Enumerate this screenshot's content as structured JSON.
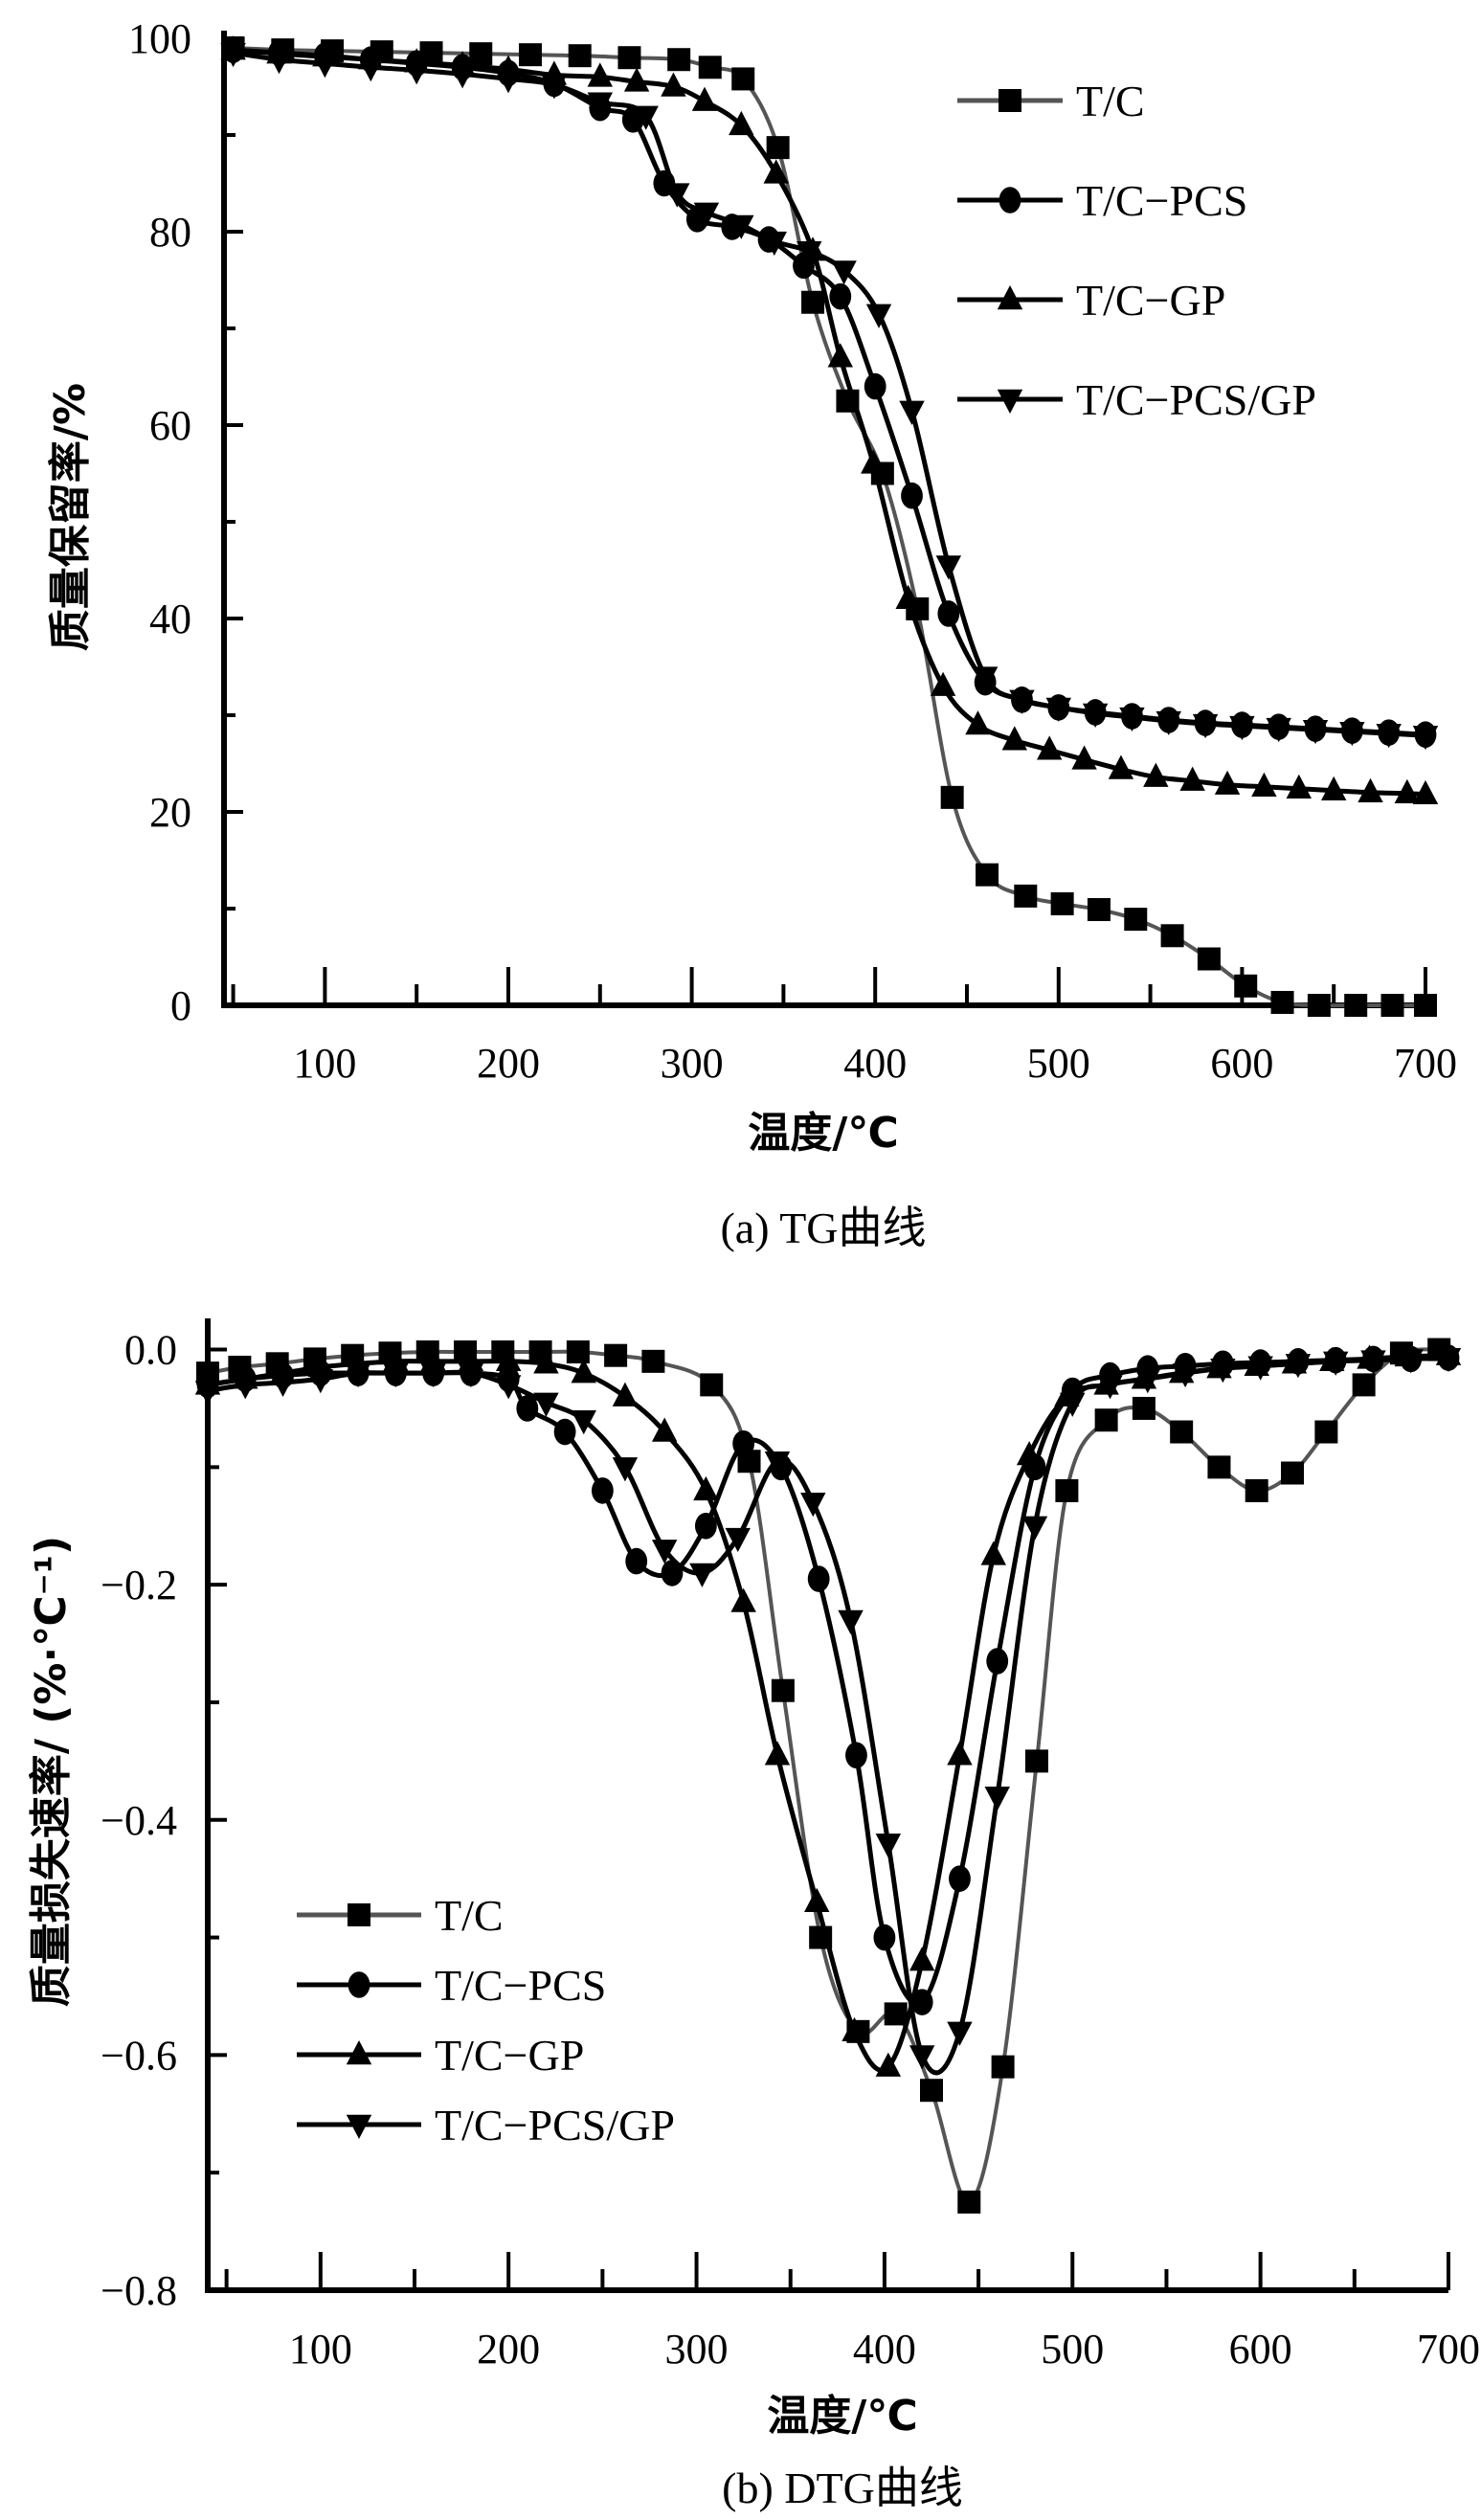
{
  "chart_data": [
    {
      "id": "tg",
      "type": "line",
      "title": "",
      "caption": "(a) TG曲线",
      "xlabel": "温度/℃",
      "ylabel": "质量保留率/%",
      "xlim": [
        45,
        700
      ],
      "ylim": [
        0,
        100
      ],
      "xticks": [
        100,
        200,
        300,
        400,
        500,
        600,
        700
      ],
      "xminor": [
        50,
        150,
        250,
        350,
        450,
        550,
        650
      ],
      "yticks": [
        0,
        20,
        40,
        60,
        80,
        100
      ],
      "yminor": [
        10,
        30,
        50,
        70,
        90
      ],
      "grid": false,
      "legend_position": "top-right",
      "series": [
        {
          "name": "T/C",
          "marker": "square",
          "color": "#555555",
          "x": [
            50,
            77,
            104,
            131,
            158,
            185,
            212,
            239,
            266,
            293,
            310,
            328,
            347,
            366,
            385,
            404,
            423,
            442,
            461,
            482,
            502,
            522,
            542,
            562,
            582,
            602,
            622,
            642,
            662,
            682,
            700
          ],
          "y": [
            99,
            98.8,
            98.7,
            98.6,
            98.5,
            98.4,
            98.3,
            98.2,
            98.0,
            97.8,
            97.0,
            95.8,
            88.7,
            72.7,
            62.5,
            55,
            41,
            21.5,
            13.5,
            11.3,
            10.5,
            9.9,
            8.9,
            7.2,
            4.8,
            2.0,
            0.3,
            0,
            0,
            0,
            0
          ]
        },
        {
          "name": "T/C-PCS",
          "marker": "circle",
          "color": "#000000",
          "x": [
            50,
            75,
            100,
            125,
            150,
            175,
            200,
            225,
            250,
            268,
            285,
            303,
            322,
            342,
            361,
            381,
            400,
            420,
            440,
            460,
            480,
            500,
            520,
            540,
            560,
            580,
            600,
            620,
            640,
            660,
            680,
            700
          ],
          "y": [
            98.8,
            98.5,
            98.2,
            97.8,
            97.4,
            97.0,
            96.4,
            95.3,
            92.8,
            91.6,
            85.0,
            81.3,
            80.5,
            79.2,
            76.5,
            73.3,
            64.0,
            52.7,
            40.5,
            33.4,
            31.6,
            30.8,
            30.3,
            29.9,
            29.5,
            29.2,
            29.0,
            28.8,
            28.6,
            28.4,
            28.2,
            28.0
          ]
        },
        {
          "name": "T/C-GP",
          "marker": "triangle-up",
          "color": "#000000",
          "x": [
            50,
            75,
            100,
            125,
            150,
            175,
            200,
            225,
            250,
            270,
            290,
            307,
            327,
            346,
            366,
            381,
            399,
            418,
            437,
            456,
            476,
            495,
            514,
            534,
            553,
            573,
            592,
            612,
            631,
            650,
            670,
            690,
            700
          ],
          "y": [
            98.8,
            98.4,
            98.1,
            97.8,
            97.5,
            97.2,
            96.8,
            96.2,
            96.0,
            95.5,
            95.0,
            93.5,
            91.0,
            86.0,
            78.0,
            67.0,
            56.0,
            42.0,
            33.0,
            29.0,
            27.4,
            26.4,
            25.4,
            24.4,
            23.6,
            23.2,
            22.8,
            22.6,
            22.4,
            22.2,
            22.0,
            21.9,
            21.8
          ]
        },
        {
          "name": "T/C-PCS/GP",
          "marker": "triangle-down",
          "color": "#000000",
          "x": [
            50,
            75,
            100,
            125,
            150,
            175,
            200,
            225,
            250,
            275,
            292,
            308,
            327,
            345,
            364,
            383,
            402,
            420,
            440,
            460,
            480,
            500,
            520,
            540,
            560,
            580,
            600,
            620,
            640,
            660,
            680,
            700
          ],
          "y": [
            98.5,
            97.8,
            97.4,
            97.0,
            96.7,
            96.3,
            95.8,
            95.2,
            93.4,
            92.0,
            84.0,
            82.0,
            80.7,
            79.0,
            78.0,
            76.0,
            71.5,
            61.5,
            45.5,
            34.0,
            31.6,
            30.8,
            30.2,
            29.8,
            29.4,
            29.1,
            28.9,
            28.7,
            28.5,
            28.3,
            28.1,
            27.9
          ]
        }
      ]
    },
    {
      "id": "dtg",
      "type": "line",
      "title": "",
      "caption": "(b) DTG曲线",
      "xlabel": "温度/℃",
      "ylabel": "质量损失速率/ (%·℃⁻¹)",
      "xlim": [
        40,
        700
      ],
      "ylim": [
        -0.8,
        0.02
      ],
      "xticks": [
        100,
        200,
        300,
        400,
        500,
        600,
        700
      ],
      "xminor": [
        50,
        150,
        250,
        350,
        450,
        550,
        650
      ],
      "yticks": [
        0.0,
        -0.2,
        -0.4,
        -0.6,
        -0.8
      ],
      "ytick_labels": [
        "0.0",
        "−0.2",
        "−0.4",
        "−0.6",
        "−0.8"
      ],
      "yminor": [
        -0.1,
        -0.3,
        -0.5,
        -0.7
      ],
      "grid": false,
      "legend_position": "center-left",
      "series": [
        {
          "name": "T/C",
          "marker": "square",
          "color": "#555555",
          "x": [
            40,
            57,
            77,
            97,
            117,
            137,
            157,
            177,
            197,
            217,
            237,
            257,
            277,
            308,
            328,
            346,
            366,
            386,
            406,
            425,
            445,
            463,
            481,
            497,
            518,
            538,
            558,
            578,
            598,
            617,
            635,
            655,
            675,
            695
          ],
          "y": [
            -0.02,
            -0.015,
            -0.012,
            -0.008,
            -0.005,
            -0.003,
            -0.002,
            -0.002,
            -0.002,
            -0.002,
            -0.002,
            -0.005,
            -0.01,
            -0.03,
            -0.095,
            -0.29,
            -0.5,
            -0.58,
            -0.565,
            -0.63,
            -0.725,
            -0.61,
            -0.35,
            -0.12,
            -0.06,
            -0.05,
            -0.07,
            -0.1,
            -0.12,
            -0.105,
            -0.07,
            -0.03,
            -0.003,
            0.0
          ]
        },
        {
          "name": "T/C-PCS",
          "marker": "circle",
          "color": "#000000",
          "x": [
            40,
            60,
            80,
            100,
            120,
            140,
            160,
            180,
            200,
            210,
            230,
            250,
            268,
            287,
            305,
            325,
            345,
            365,
            385,
            400,
            420,
            440,
            460,
            480,
            500,
            520,
            540,
            560,
            580,
            600,
            620,
            640,
            660,
            680,
            700
          ],
          "y": [
            -0.03,
            -0.025,
            -0.022,
            -0.02,
            -0.02,
            -0.02,
            -0.02,
            -0.02,
            -0.025,
            -0.05,
            -0.07,
            -0.12,
            -0.18,
            -0.19,
            -0.15,
            -0.08,
            -0.1,
            -0.195,
            -0.345,
            -0.5,
            -0.555,
            -0.45,
            -0.265,
            -0.1,
            -0.035,
            -0.022,
            -0.016,
            -0.014,
            -0.012,
            -0.011,
            -0.01,
            -0.009,
            -0.008,
            -0.008,
            -0.007
          ]
        },
        {
          "name": "T/C-GP",
          "marker": "triangle-up",
          "color": "#000000",
          "x": [
            40,
            60,
            80,
            100,
            120,
            140,
            160,
            180,
            200,
            220,
            240,
            262,
            283,
            305,
            325,
            343,
            364,
            384,
            402,
            420,
            440,
            458,
            477,
            497,
            518,
            538,
            558,
            578,
            598,
            618,
            638,
            658,
            678,
            700
          ],
          "y": [
            -0.03,
            -0.025,
            -0.02,
            -0.015,
            -0.012,
            -0.01,
            -0.01,
            -0.01,
            -0.01,
            -0.012,
            -0.02,
            -0.04,
            -0.07,
            -0.12,
            -0.215,
            -0.345,
            -0.47,
            -0.58,
            -0.61,
            -0.52,
            -0.345,
            -0.175,
            -0.09,
            -0.04,
            -0.03,
            -0.025,
            -0.02,
            -0.016,
            -0.014,
            -0.012,
            -0.01,
            -0.008,
            -0.006,
            -0.005
          ]
        },
        {
          "name": "T/C-PCS/GP",
          "marker": "triangle-down",
          "color": "#000000",
          "x": [
            40,
            60,
            80,
            100,
            120,
            140,
            160,
            180,
            200,
            220,
            240,
            262,
            283,
            303,
            322,
            343,
            362,
            382,
            402,
            420,
            440,
            460,
            480,
            500,
            520,
            540,
            560,
            580,
            600,
            620,
            640,
            660,
            680,
            700
          ],
          "y": [
            -0.035,
            -0.03,
            -0.028,
            -0.025,
            -0.02,
            -0.02,
            -0.02,
            -0.02,
            -0.03,
            -0.045,
            -0.06,
            -0.1,
            -0.17,
            -0.19,
            -0.16,
            -0.095,
            -0.13,
            -0.23,
            -0.42,
            -0.6,
            -0.58,
            -0.38,
            -0.15,
            -0.045,
            -0.03,
            -0.025,
            -0.02,
            -0.016,
            -0.014,
            -0.012,
            -0.01,
            -0.009,
            -0.008,
            -0.007
          ]
        }
      ]
    }
  ]
}
